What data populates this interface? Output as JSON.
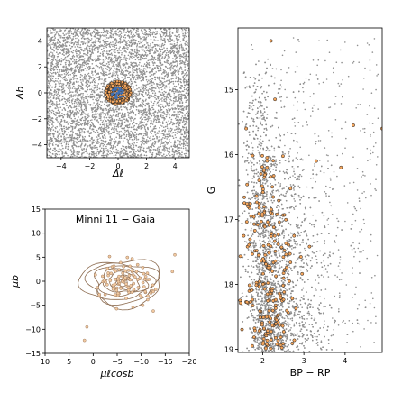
{
  "chart_data": [
    {
      "id": "spatial",
      "type": "scatter",
      "xlabel": "Δℓ",
      "ylabel": "Δb",
      "xlim": [
        -5,
        5
      ],
      "ylim": [
        -5,
        5
      ],
      "xticks": [
        -4,
        -2,
        0,
        2,
        4
      ],
      "yticks": [
        -4,
        -2,
        0,
        2,
        4
      ],
      "tick_labels_x": [
        "−4",
        "−2",
        "0",
        "2",
        "4"
      ],
      "tick_labels_y": [
        "−4",
        "−2",
        "0",
        "2",
        "4"
      ],
      "field_color": "#909090",
      "member_color": "#f2a45c",
      "core_color": "#3b6fb6",
      "cluster_center": [
        0,
        0
      ],
      "cluster_radius": 0.9
    },
    {
      "id": "proper-motion",
      "type": "scatter",
      "title": "Minni 11  −  Gaia",
      "xlabel": "μℓcosb",
      "ylabel": "μb",
      "xlim": [
        10,
        -20
      ],
      "ylim": [
        -15,
        15
      ],
      "xticks": [
        10,
        5,
        0,
        -5,
        -10,
        -15,
        -20
      ],
      "yticks": [
        -15,
        -10,
        -5,
        0,
        5,
        10,
        15
      ],
      "tick_labels_x": [
        "10",
        "5",
        "0",
        "−5",
        "−10",
        "−15",
        "−20"
      ],
      "tick_labels_y": [
        "−15",
        "−10",
        "−5",
        "0",
        "5",
        "10",
        "15"
      ],
      "contour_color": "#8b6a4e",
      "point_color": "#f2c9a0",
      "center": [
        -6,
        -0.3
      ]
    },
    {
      "id": "cmd",
      "type": "scatter",
      "xlabel": "BP − RP",
      "ylabel": "G",
      "xlim": [
        1.4,
        4.9
      ],
      "ylim": [
        19.05,
        14.05
      ],
      "xticks": [
        2,
        3,
        4
      ],
      "yticks": [
        15,
        16,
        17,
        18,
        19
      ],
      "tick_labels_x": [
        "2",
        "3",
        "4"
      ],
      "tick_labels_y": [
        "15",
        "16",
        "17",
        "18",
        "19"
      ],
      "field_color": "#909090",
      "member_color": "#f2a45c"
    }
  ]
}
